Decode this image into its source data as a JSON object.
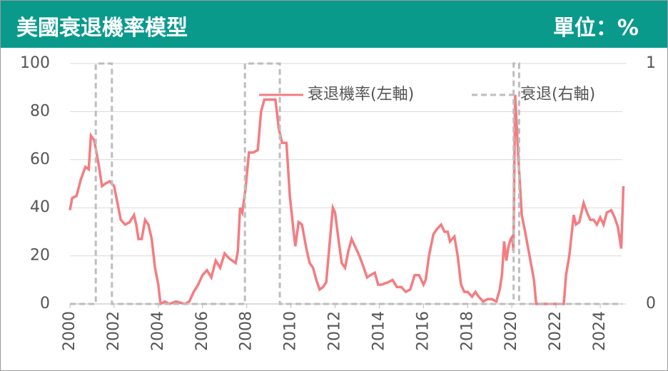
{
  "chart_data": {
    "type": "line",
    "title": "美國衰退機率模型",
    "unit_label": "單位：%",
    "xlim": [
      2000,
      2025
    ],
    "xticks": [
      2000,
      2002,
      2004,
      2006,
      2008,
      2010,
      2012,
      2014,
      2016,
      2018,
      2020,
      2022,
      2024
    ],
    "ylim": [
      0,
      100
    ],
    "yticks": [
      0,
      20,
      40,
      60,
      80,
      100
    ],
    "y2lim": [
      0,
      1
    ],
    "y2ticks": [
      0,
      1
    ],
    "grid": true,
    "legend": "top",
    "series": [
      {
        "name": "衰退機率(左軸)",
        "color": "#f47c80",
        "axis": "y",
        "x": [
          2000,
          2000.1,
          2000.3,
          2000.5,
          2000.7,
          2000.85,
          2000.95,
          2001.1,
          2001.3,
          2001.45,
          2001.6,
          2001.8,
          2002.0,
          2002.15,
          2002.3,
          2002.5,
          2002.7,
          2002.9,
          2003.0,
          2003.1,
          2003.25,
          2003.4,
          2003.55,
          2003.7,
          2003.85,
          2004.0,
          2004.1,
          2004.3,
          2004.5,
          2004.8,
          2005.2,
          2005.4,
          2005.6,
          2005.8,
          2006.0,
          2006.2,
          2006.4,
          2006.6,
          2006.8,
          2007.0,
          2007.2,
          2007.5,
          2007.6,
          2007.7,
          2007.8,
          2007.95,
          2008.1,
          2008.3,
          2008.5,
          2008.65,
          2008.8,
          2009.0,
          2009.3,
          2009.45,
          2009.6,
          2009.8,
          2009.95,
          2010.1,
          2010.2,
          2010.35,
          2010.5,
          2010.7,
          2010.85,
          2011.0,
          2011.15,
          2011.3,
          2011.45,
          2011.6,
          2011.75,
          2011.9,
          2012.0,
          2012.15,
          2012.3,
          2012.45,
          2012.6,
          2012.75,
          2012.9,
          2013.1,
          2013.3,
          2013.45,
          2013.6,
          2013.8,
          2013.95,
          2014.1,
          2014.4,
          2014.6,
          2014.8,
          2015.0,
          2015.2,
          2015.4,
          2015.6,
          2015.8,
          2016.0,
          2016.1,
          2016.25,
          2016.45,
          2016.6,
          2016.8,
          2016.95,
          2017.1,
          2017.2,
          2017.4,
          2017.55,
          2017.7,
          2017.85,
          2018.0,
          2018.2,
          2018.35,
          2018.5,
          2018.7,
          2018.9,
          2019.1,
          2019.3,
          2019.45,
          2019.55,
          2019.65,
          2019.75,
          2019.85,
          2019.95,
          2020.02,
          2020.07,
          2020.15,
          2020.3,
          2020.45,
          2020.6,
          2020.8,
          2021.0,
          2021.1,
          2022.35,
          2022.45,
          2022.6,
          2022.8,
          2022.9,
          2023.05,
          2023.25,
          2023.4,
          2023.55,
          2023.7,
          2023.85,
          2024.0,
          2024.15,
          2024.3,
          2024.5,
          2024.65,
          2024.8,
          2024.95,
          2025.05
        ],
        "values": [
          39,
          44,
          45,
          52,
          57,
          56,
          70,
          68,
          58,
          49,
          50,
          51,
          49,
          42,
          35,
          33,
          34,
          37,
          33,
          27,
          27,
          35,
          33,
          27,
          15,
          8,
          0,
          1,
          0,
          1,
          0,
          1,
          5,
          8,
          12,
          14,
          11,
          18,
          15,
          21,
          19,
          17,
          22,
          40,
          38,
          48,
          63,
          63,
          64,
          80,
          85,
          85,
          85,
          73,
          67,
          67,
          45,
          32,
          24,
          34,
          33,
          23,
          17,
          15,
          10,
          6,
          7,
          9,
          25,
          40,
          38,
          27,
          17,
          15,
          22,
          27,
          24,
          20,
          15,
          11,
          12,
          13,
          8,
          8,
          9,
          10,
          7,
          7,
          5,
          6,
          12,
          12,
          8,
          10,
          20,
          29,
          31,
          33,
          30,
          30,
          26,
          28,
          20,
          8,
          5,
          5,
          3,
          5,
          3,
          1,
          2,
          2,
          1,
          6,
          12,
          26,
          18,
          24,
          27,
          28,
          22,
          87,
          60,
          37,
          30,
          20,
          10,
          0,
          0,
          12,
          20,
          37,
          33,
          34,
          42,
          38,
          35,
          35,
          33,
          36,
          33,
          38,
          39,
          36,
          32,
          23,
          49
        ]
      },
      {
        "name": "衰退(右軸)",
        "color": "#bdbdbd",
        "axis": "y2",
        "x": [
          2000,
          2001.17,
          2001.17,
          2001.9,
          2001.9,
          2007.92,
          2007.92,
          2009.5,
          2009.5,
          2020.08,
          2020.08,
          2020.33,
          2020.33,
          2025
        ],
        "values": [
          0,
          0,
          1,
          1,
          0,
          0,
          1,
          1,
          0,
          0,
          1,
          1,
          0,
          0
        ]
      }
    ]
  }
}
